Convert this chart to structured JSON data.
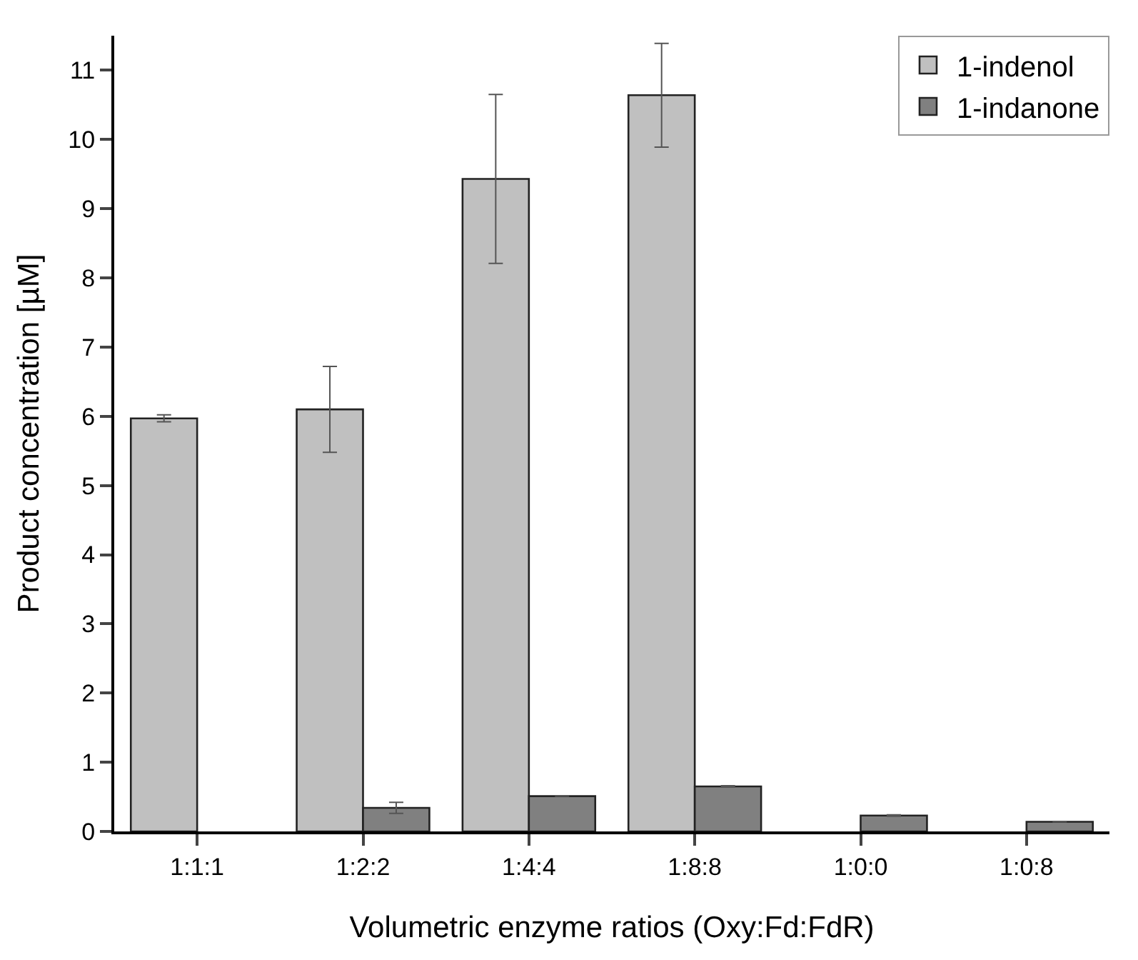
{
  "chart_data": {
    "type": "bar",
    "xlabel": "Volumetric enzyme ratios (Oxy:Fd:FdR)",
    "ylabel": "Product concentration [µM]",
    "categories": [
      "1:1:1",
      "1:2:2",
      "1:4:4",
      "1:8:8",
      "1:0:0",
      "1:0:8"
    ],
    "series": [
      {
        "name": "1-indenol",
        "color": "#c0c0c0",
        "values": [
          5.97,
          6.1,
          9.43,
          10.64,
          null,
          null
        ],
        "errors": [
          0.05,
          0.62,
          1.22,
          0.75,
          null,
          null
        ]
      },
      {
        "name": "1-indanone",
        "color": "#808080",
        "values": [
          null,
          0.34,
          0.51,
          0.65,
          0.23,
          0.14
        ],
        "errors": [
          null,
          0.08,
          null,
          0.01,
          0.01,
          null
        ]
      }
    ],
    "ylim": [
      0,
      11.5
    ],
    "yticks": [
      0,
      1,
      2,
      3,
      4,
      5,
      6,
      7,
      8,
      9,
      10,
      11
    ],
    "grid": false,
    "legend": "top right"
  }
}
